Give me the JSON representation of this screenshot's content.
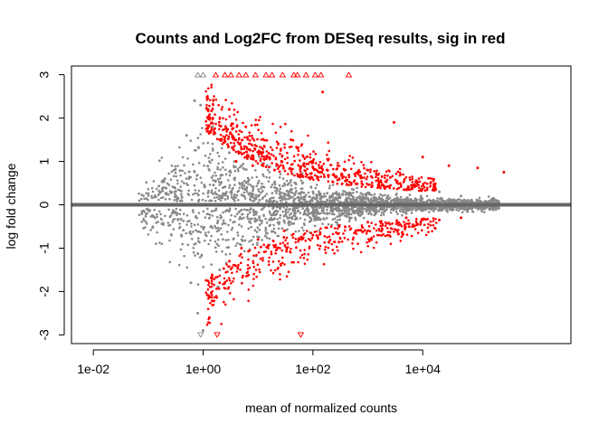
{
  "chart_data": {
    "type": "scatter",
    "title": "Counts and Log2FC from DESeq results, sig in red",
    "xlabel": "mean of normalized counts",
    "ylabel": "log fold change",
    "x_scale": "log10",
    "xlim": [
      0.004,
      5000000
    ],
    "ylim": [
      -3.2,
      3.2
    ],
    "x_ticks": [
      {
        "value": 0.01,
        "label": "1e-02"
      },
      {
        "value": 1,
        "label": "1e+00"
      },
      {
        "value": 100,
        "label": "1e+02"
      },
      {
        "value": 10000,
        "label": "1e+04"
      }
    ],
    "y_ticks": [
      {
        "value": -3,
        "label": "-3"
      },
      {
        "value": -2,
        "label": "-2"
      },
      {
        "value": -1,
        "label": "-1"
      },
      {
        "value": 0,
        "label": "0"
      },
      {
        "value": 1,
        "label": "1"
      },
      {
        "value": 2,
        "label": "2"
      },
      {
        "value": 3,
        "label": "3"
      }
    ],
    "grid": false,
    "reference_line": {
      "y": 0,
      "color": "#666666"
    },
    "colors": {
      "not_significant": "#888888",
      "significant": "#ff0000"
    },
    "series": [
      {
        "values_note": "",
        "points": [
          [
            0.3,
            0.4
          ],
          [
            0.5,
            1.6
          ],
          [
            0.7,
            2.4
          ],
          [
            0.9,
            2.3
          ],
          [
            0.6,
            -1.8
          ],
          [
            0.8,
            -2.5
          ],
          [
            1.0,
            -2.9
          ],
          [
            0.2,
            0.6
          ],
          [
            0.4,
            -0.7
          ],
          [
            1.5,
            1.8
          ],
          [
            2.0,
            -1.5
          ],
          [
            3.0,
            1.2
          ],
          [
            5.0,
            0.9
          ],
          [
            10,
            0.5
          ],
          [
            20,
            0.4
          ],
          [
            50,
            -0.3
          ],
          [
            100,
            0.3
          ],
          [
            300,
            0.2
          ],
          [
            1000,
            0.15
          ],
          [
            5000,
            -0.2
          ],
          [
            20000,
            0.3
          ],
          [
            50000,
            0.2
          ],
          [
            200000,
            0.1
          ]
        ],
        "edge_up": [
          0.8,
          1.0
        ],
        "edge_down": [
          0.9
        ]
      },
      {
        "points": [
          [
            1.2,
            2.5
          ],
          [
            1.5,
            2.0
          ],
          [
            2,
            1.5
          ],
          [
            3,
            2.2
          ],
          [
            4,
            1.0
          ],
          [
            6,
            1.8
          ],
          [
            8,
            0.9
          ],
          [
            12,
            1.2
          ],
          [
            20,
            0.8
          ],
          [
            40,
            1.5
          ],
          [
            60,
            0.7
          ],
          [
            100,
            1.0
          ],
          [
            150,
            2.6
          ],
          [
            300,
            0.6
          ],
          [
            500,
            0.5
          ],
          [
            1000,
            0.8
          ],
          [
            2000,
            0.4
          ],
          [
            3000,
            1.9
          ],
          [
            10000,
            1.1
          ],
          [
            30000,
            0.9
          ],
          [
            100000,
            0.85
          ],
          [
            300000,
            0.75
          ],
          [
            1.3,
            -2.6
          ],
          [
            2,
            -1.8
          ],
          [
            3,
            -1.3
          ],
          [
            5,
            -1.0
          ],
          [
            10,
            -0.8
          ],
          [
            30,
            -0.6
          ],
          [
            100,
            -0.7
          ],
          [
            300,
            -0.5
          ],
          [
            1000,
            -0.4
          ],
          [
            5000,
            -0.3
          ],
          [
            20000,
            -0.35
          ],
          [
            50000,
            -0.3
          ]
        ],
        "edge_up": [
          1.7,
          2.5,
          3.2,
          4.5,
          6,
          9,
          14,
          18,
          28,
          45,
          52,
          75,
          110,
          140,
          450
        ],
        "edge_down": [
          1.8,
          60
        ]
      }
    ]
  }
}
